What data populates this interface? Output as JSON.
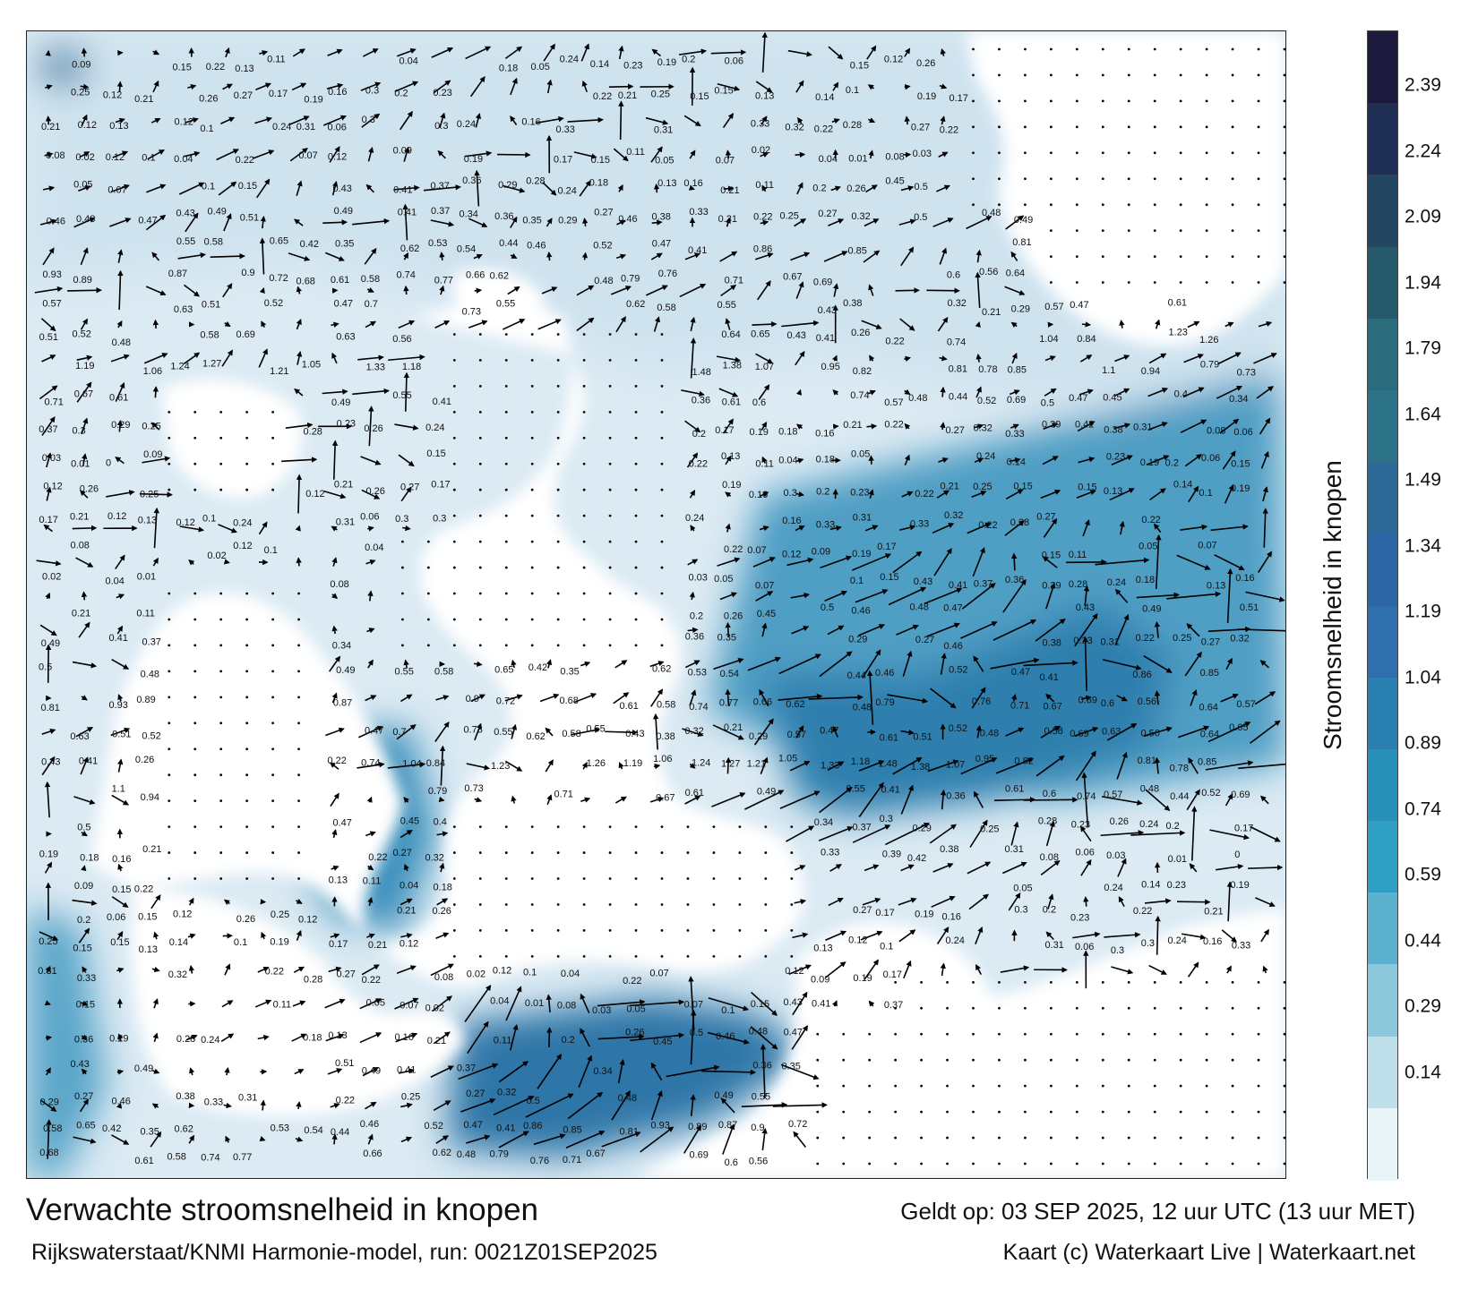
{
  "map": {
    "title": "Verwachte stroomsnelheid in knopen",
    "subtitle": "Rijkswaterstaat/KNMI Harmonie-model, run: 0021Z01SEP2025",
    "valid_time": "Geldt op: 03 SEP 2025, 12 uur UTC (13 uur MET)",
    "credit": "Kaart (c) Waterkaart Live | Waterkaart.net",
    "land_color": "#ffffff",
    "water_color_light": "#e6f1f8",
    "water_color_deep": "#2f80b0",
    "arrow_color": "#000000"
  },
  "colorbar": {
    "label": "Stroomsnelheid in knopen",
    "ticks": [
      "2.39",
      "2.24",
      "2.09",
      "1.94",
      "1.79",
      "1.64",
      "1.49",
      "1.34",
      "1.19",
      "1.04",
      "0.89",
      "0.74",
      "0.59",
      "0.44",
      "0.29",
      "0.14"
    ],
    "colors": [
      "#1c1a3d",
      "#1f2e55",
      "#234760",
      "#265a6a",
      "#2a6b7c",
      "#2d7388",
      "#2e6a97",
      "#2d66a5",
      "#2f6fae",
      "#2a80b0",
      "#2690b9",
      "#2f9ec3",
      "#5cb1cf",
      "#8cc7dc",
      "#bfe0eb",
      "#e8f4f8"
    ]
  },
  "currents": {
    "labels": [
      {
        "v": "0.09"
      },
      {
        "v": "0.15"
      },
      {
        "v": "0.22"
      },
      {
        "v": "0.13"
      },
      {
        "v": "0.11"
      },
      {
        "v": "0.04"
      },
      {
        "v": "0.18"
      },
      {
        "v": "0.05"
      },
      {
        "v": "0.24"
      },
      {
        "v": "0.14"
      },
      {
        "v": "0.23"
      },
      {
        "v": "0.19"
      },
      {
        "v": "0.2"
      },
      {
        "v": "0.06"
      },
      {
        "v": "0.15"
      },
      {
        "v": "0.12"
      },
      {
        "v": "0.26"
      },
      {
        "v": "0.25"
      },
      {
        "v": "0.12"
      },
      {
        "v": "0.21"
      },
      {
        "v": "0.26"
      },
      {
        "v": "0.27"
      },
      {
        "v": "0.17"
      },
      {
        "v": "0.19"
      },
      {
        "v": "0.16"
      },
      {
        "v": "0.3"
      },
      {
        "v": "0.2"
      },
      {
        "v": "0.23"
      },
      {
        "v": "0.22"
      },
      {
        "v": "0.21"
      },
      {
        "v": "0.25"
      },
      {
        "v": "0.15"
      },
      {
        "v": "0.15"
      },
      {
        "v": "0.13"
      },
      {
        "v": "0.14"
      },
      {
        "v": "0.1"
      },
      {
        "v": "0.19"
      },
      {
        "v": "0.17"
      },
      {
        "v": "0.21"
      },
      {
        "v": "0.12"
      },
      {
        "v": "0.13"
      },
      {
        "v": "0.12"
      },
      {
        "v": "0.1"
      },
      {
        "v": "0.24"
      },
      {
        "v": "0.31"
      },
      {
        "v": "0.06"
      },
      {
        "v": "0.3"
      },
      {
        "v": "0.3"
      },
      {
        "v": "0.24"
      },
      {
        "v": "0.16"
      },
      {
        "v": "0.33"
      },
      {
        "v": "0.31"
      },
      {
        "v": "0.33"
      },
      {
        "v": "0.32"
      },
      {
        "v": "0.22"
      },
      {
        "v": "0.28"
      },
      {
        "v": "0.27"
      },
      {
        "v": "0.22"
      },
      {
        "v": "0.08"
      },
      {
        "v": "0.02"
      },
      {
        "v": "0.12"
      },
      {
        "v": "0.1"
      },
      {
        "v": "0.04"
      },
      {
        "v": "0.22"
      },
      {
        "v": "0.07"
      },
      {
        "v": "0.12"
      },
      {
        "v": "0.09"
      },
      {
        "v": "0.19"
      },
      {
        "v": "0.17"
      },
      {
        "v": "0.15"
      },
      {
        "v": "0.11"
      },
      {
        "v": "0.05"
      },
      {
        "v": "0.07"
      },
      {
        "v": "0.02"
      },
      {
        "v": "0.04"
      },
      {
        "v": "0.01"
      },
      {
        "v": "0.08"
      },
      {
        "v": "0.03"
      },
      {
        "v": "0.05"
      },
      {
        "v": "0.07"
      },
      {
        "v": "0.1"
      },
      {
        "v": "0.15"
      },
      {
        "v": "0.43"
      },
      {
        "v": "0.41"
      },
      {
        "v": "0.37"
      },
      {
        "v": "0.36"
      },
      {
        "v": "0.29"
      },
      {
        "v": "0.28"
      },
      {
        "v": "0.24"
      },
      {
        "v": "0.18"
      },
      {
        "v": "0.13"
      },
      {
        "v": "0.16"
      },
      {
        "v": "0.21"
      },
      {
        "v": "0.11"
      },
      {
        "v": "0.2"
      },
      {
        "v": "0.26"
      },
      {
        "v": "0.45"
      },
      {
        "v": "0.5"
      },
      {
        "v": "0.46"
      },
      {
        "v": "0.48"
      },
      {
        "v": "0.47"
      },
      {
        "v": "0.43"
      },
      {
        "v": "0.49"
      },
      {
        "v": "0.51"
      },
      {
        "v": "0.49"
      },
      {
        "v": "0.41"
      },
      {
        "v": "0.37"
      },
      {
        "v": "0.34"
      },
      {
        "v": "0.36"
      },
      {
        "v": "0.35"
      },
      {
        "v": "0.29"
      },
      {
        "v": "0.27"
      },
      {
        "v": "0.46"
      },
      {
        "v": "0.38"
      },
      {
        "v": "0.33"
      },
      {
        "v": "0.31"
      },
      {
        "v": "0.22"
      },
      {
        "v": "0.25"
      },
      {
        "v": "0.27"
      },
      {
        "v": "0.32"
      },
      {
        "v": "0.5"
      },
      {
        "v": "0.48"
      },
      {
        "v": "0.49"
      },
      {
        "v": "0.55"
      },
      {
        "v": "0.58"
      },
      {
        "v": "0.65"
      },
      {
        "v": "0.42"
      },
      {
        "v": "0.35"
      },
      {
        "v": "0.62"
      },
      {
        "v": "0.53"
      },
      {
        "v": "0.54"
      },
      {
        "v": "0.44"
      },
      {
        "v": "0.46"
      },
      {
        "v": "0.52"
      },
      {
        "v": "0.47"
      },
      {
        "v": "0.41"
      },
      {
        "v": "0.86"
      },
      {
        "v": "0.85"
      },
      {
        "v": "0.81"
      },
      {
        "v": "0.93"
      },
      {
        "v": "0.89"
      },
      {
        "v": "0.87"
      },
      {
        "v": "0.9"
      },
      {
        "v": "0.72"
      },
      {
        "v": "0.68"
      },
      {
        "v": "0.61"
      },
      {
        "v": "0.58"
      },
      {
        "v": "0.74"
      },
      {
        "v": "0.77"
      },
      {
        "v": "0.66"
      },
      {
        "v": "0.62"
      },
      {
        "v": "0.48"
      },
      {
        "v": "0.79"
      },
      {
        "v": "0.76"
      },
      {
        "v": "0.71"
      },
      {
        "v": "0.67"
      },
      {
        "v": "0.69"
      },
      {
        "v": "0.6"
      },
      {
        "v": "0.56"
      },
      {
        "v": "0.64"
      },
      {
        "v": "0.57"
      },
      {
        "v": "0.63"
      },
      {
        "v": "0.51"
      },
      {
        "v": "0.52"
      },
      {
        "v": "0.47"
      },
      {
        "v": "0.7"
      },
      {
        "v": "0.73"
      },
      {
        "v": "0.55"
      },
      {
        "v": "0.62"
      },
      {
        "v": "0.58"
      },
      {
        "v": "0.55"
      },
      {
        "v": "0.43"
      },
      {
        "v": "0.38"
      },
      {
        "v": "0.32"
      },
      {
        "v": "0.21"
      },
      {
        "v": "0.29"
      },
      {
        "v": "0.57"
      },
      {
        "v": "0.47"
      },
      {
        "v": "0.61"
      },
      {
        "v": "0.51"
      },
      {
        "v": "0.52"
      },
      {
        "v": "0.48"
      },
      {
        "v": "0.58"
      },
      {
        "v": "0.69"
      },
      {
        "v": "0.63"
      },
      {
        "v": "0.56"
      },
      {
        "v": "0.64"
      },
      {
        "v": "0.65"
      },
      {
        "v": "0.43"
      },
      {
        "v": "0.41"
      },
      {
        "v": "0.26"
      },
      {
        "v": "0.22"
      },
      {
        "v": "0.74"
      },
      {
        "v": "1.04"
      },
      {
        "v": "0.84"
      },
      {
        "v": "1.23"
      },
      {
        "v": "1.26"
      },
      {
        "v": "1.19"
      },
      {
        "v": "1.06"
      },
      {
        "v": "1.24"
      },
      {
        "v": "1.27"
      },
      {
        "v": "1.21"
      },
      {
        "v": "1.05"
      },
      {
        "v": "1.33"
      },
      {
        "v": "1.18"
      },
      {
        "v": "1.48"
      },
      {
        "v": "1.38"
      },
      {
        "v": "1.07"
      },
      {
        "v": "0.95"
      },
      {
        "v": "0.82"
      },
      {
        "v": "0.81"
      },
      {
        "v": "0.78"
      },
      {
        "v": "0.85"
      },
      {
        "v": "1.1"
      },
      {
        "v": "0.94"
      },
      {
        "v": "0.79"
      },
      {
        "v": "0.73"
      },
      {
        "v": "0.71"
      },
      {
        "v": "0.67"
      },
      {
        "v": "0.61"
      },
      {
        "v": "0.49"
      },
      {
        "v": "0.55"
      },
      {
        "v": "0.41"
      },
      {
        "v": "0.36"
      },
      {
        "v": "0.61"
      },
      {
        "v": "0.6"
      },
      {
        "v": "0.74"
      },
      {
        "v": "0.57"
      },
      {
        "v": "0.48"
      },
      {
        "v": "0.44"
      },
      {
        "v": "0.52"
      },
      {
        "v": "0.69"
      },
      {
        "v": "0.5"
      },
      {
        "v": "0.47"
      },
      {
        "v": "0.45"
      },
      {
        "v": "0.4"
      },
      {
        "v": "0.34"
      },
      {
        "v": "0.37"
      },
      {
        "v": "0.3"
      },
      {
        "v": "0.29"
      },
      {
        "v": "0.25"
      },
      {
        "v": "0.28"
      },
      {
        "v": "0.23"
      },
      {
        "v": "0.26"
      },
      {
        "v": "0.24"
      },
      {
        "v": "0.2"
      },
      {
        "v": "0.17"
      },
      {
        "v": "0.19"
      },
      {
        "v": "0.18"
      },
      {
        "v": "0.16"
      },
      {
        "v": "0.21"
      },
      {
        "v": "0.22"
      },
      {
        "v": "0.27"
      },
      {
        "v": "0.32"
      },
      {
        "v": "0.33"
      },
      {
        "v": "0.39"
      },
      {
        "v": "0.42"
      },
      {
        "v": "0.38"
      },
      {
        "v": "0.31"
      },
      {
        "v": "0.08"
      },
      {
        "v": "0.06"
      },
      {
        "v": "0.03"
      },
      {
        "v": "0.01"
      },
      {
        "v": "0"
      }
    ],
    "arrows": [
      {
        "u": 0.1,
        "v": 0.2
      },
      {
        "u": -0.1,
        "v": 0.2
      },
      {
        "u": 0.2,
        "v": 0.05
      },
      {
        "u": 0.25,
        "v": -0.05
      },
      {
        "u": -0.05,
        "v": 0.25
      },
      {
        "u": 0.1,
        "v": 0.3
      },
      {
        "u": 0.3,
        "v": 0.1
      },
      {
        "u": 0.35,
        "v": 0.2
      },
      {
        "u": 0.45,
        "v": 0.15
      },
      {
        "u": 0.5,
        "v": 0.25
      },
      {
        "u": 0.6,
        "v": 0.2
      },
      {
        "u": 0.7,
        "v": 0.3
      },
      {
        "u": 0.8,
        "v": 0.35
      },
      {
        "u": 0.6,
        "v": 0.45
      },
      {
        "u": 0.4,
        "v": 0.6
      },
      {
        "u": 0.2,
        "v": 0.55
      },
      {
        "u": 0.05,
        "v": 0.4
      },
      {
        "u": -0.2,
        "v": 0.3
      },
      {
        "u": 0.9,
        "v": 0.1
      },
      {
        "u": 1.2,
        "v": 0.05
      },
      {
        "u": 0.0,
        "v": 1.3
      },
      {
        "u": 0.75,
        "v": -0.2
      },
      {
        "u": 0.55,
        "v": -0.35
      },
      {
        "u": 0.3,
        "v": 0.45
      }
    ]
  }
}
